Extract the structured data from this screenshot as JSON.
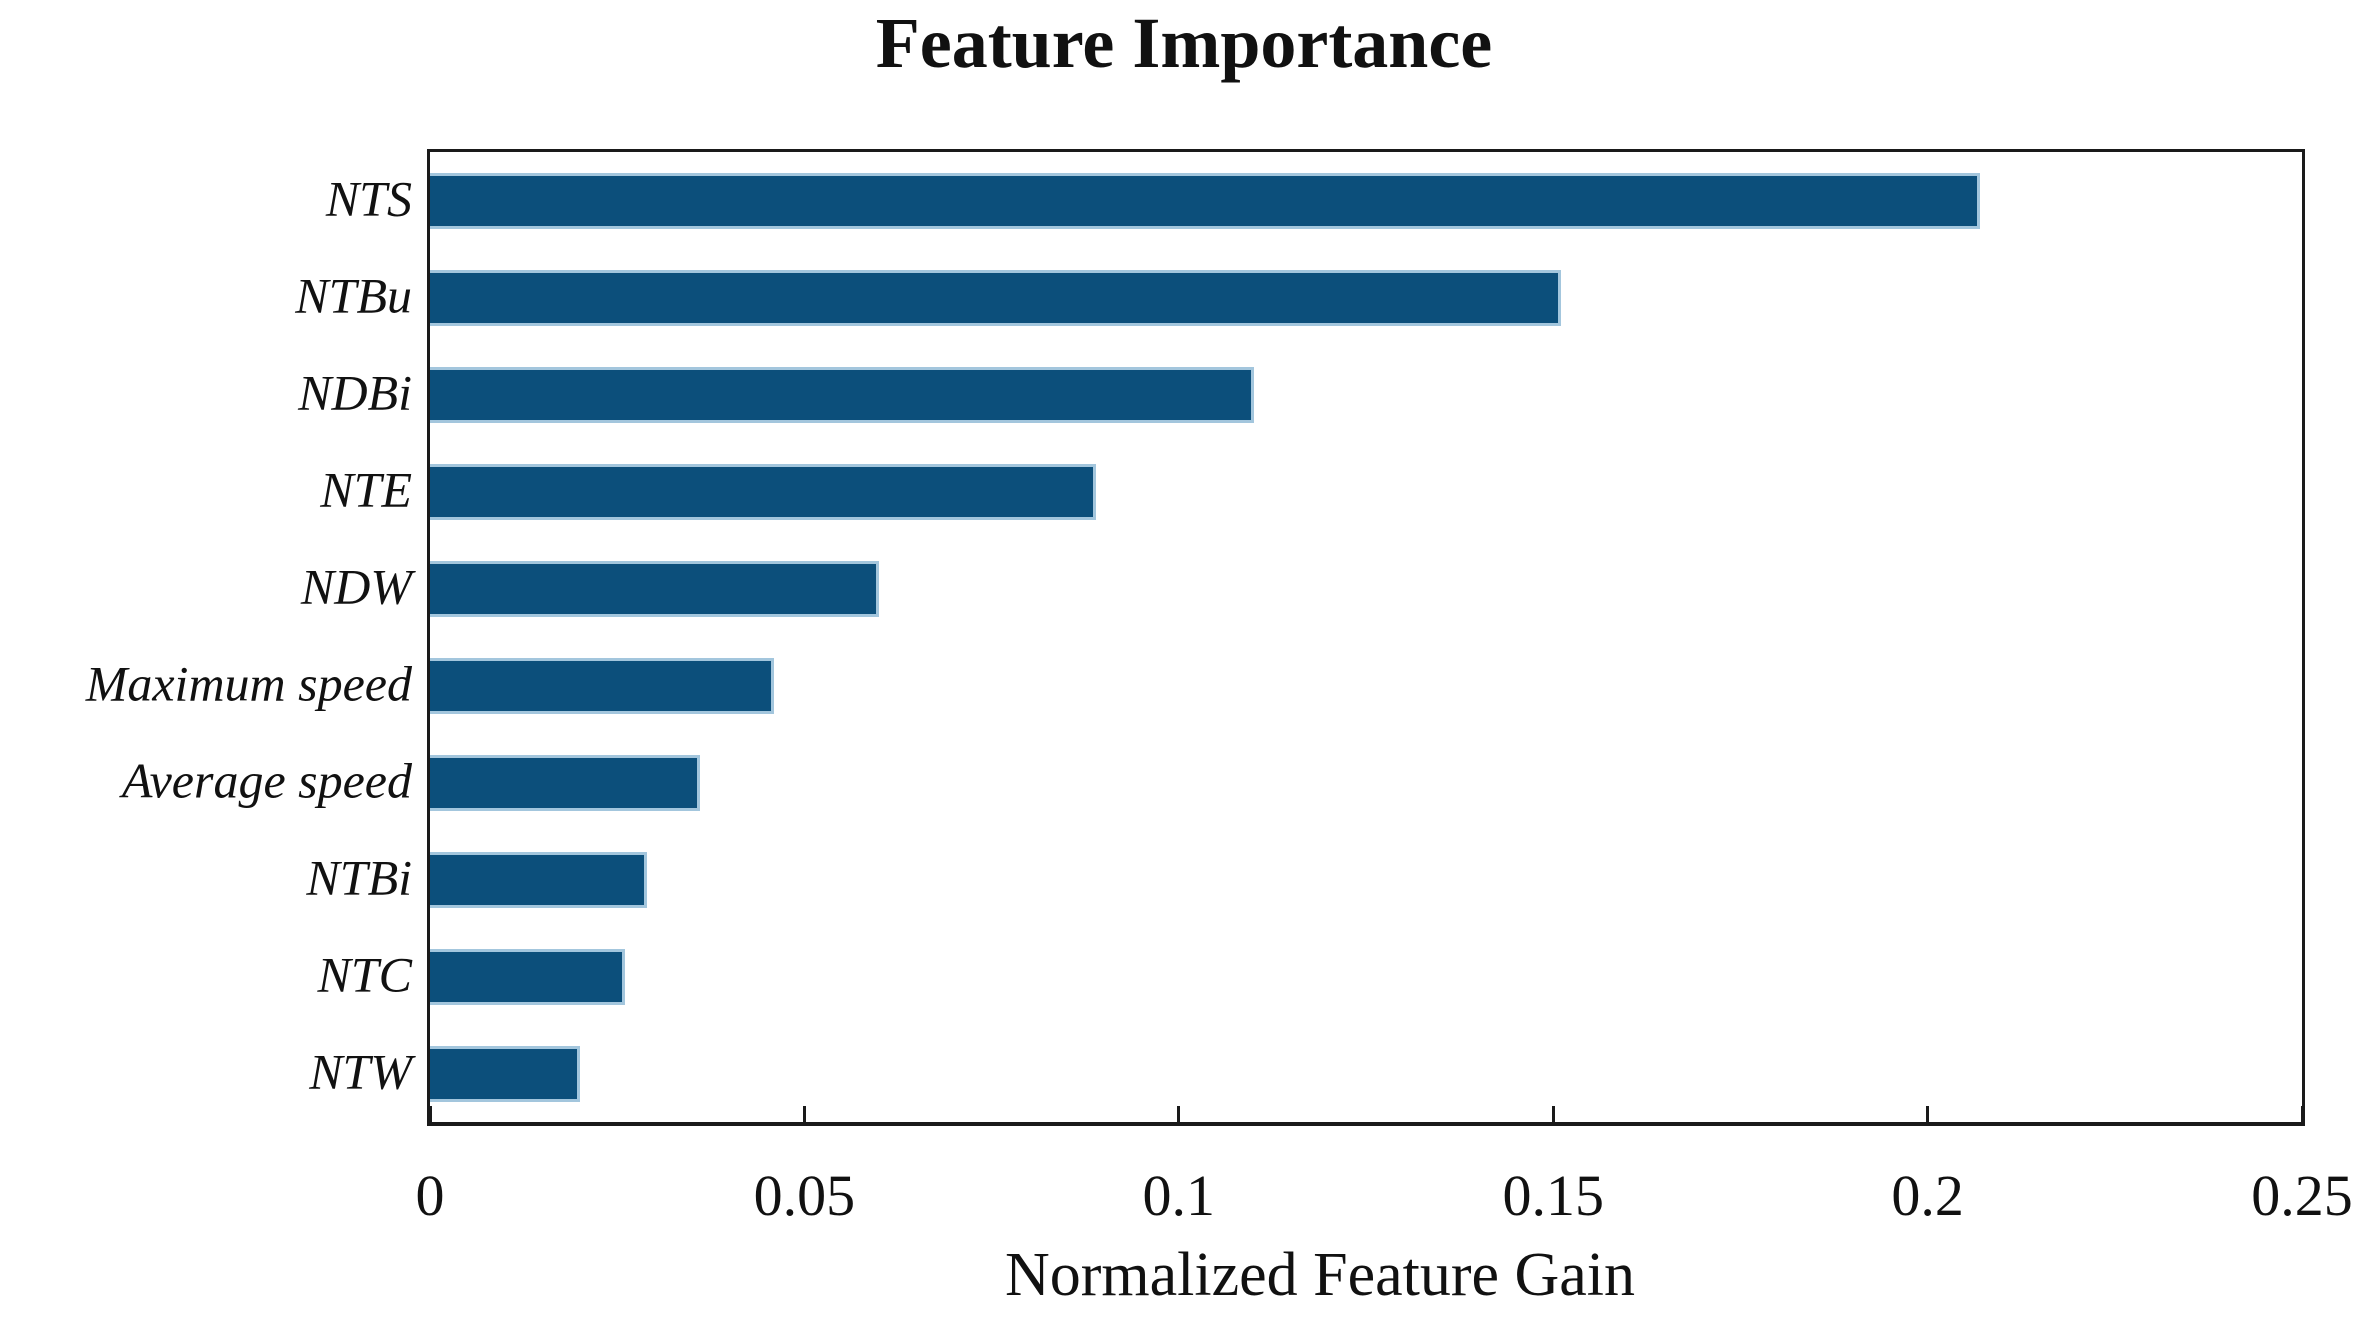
{
  "figure": {
    "title": "Feature Importance",
    "xlabel": "Normalized Feature Gain"
  },
  "chart_data": {
    "type": "bar",
    "orientation": "horizontal",
    "title": "Feature Importance",
    "xlabel": "Normalized Feature Gain",
    "ylabel": "",
    "categories": [
      "NTS",
      "NTBu",
      "NDBi",
      "NTE",
      "NDW",
      "Maximum speed",
      "Average speed",
      "NTBi",
      "NTC",
      "NTW"
    ],
    "values": [
      0.207,
      0.151,
      0.11,
      0.089,
      0.06,
      0.046,
      0.036,
      0.029,
      0.026,
      0.02
    ],
    "xlim": [
      0,
      0.25
    ],
    "xticks": [
      0,
      0.05,
      0.1,
      0.15,
      0.2,
      0.25
    ],
    "xtick_labels": [
      "0",
      "0.05",
      "0.1",
      "0.15",
      "0.2",
      "0.25"
    ],
    "bar_color": "#0C4F7B",
    "bar_edge_color": "#A3C6DD",
    "axis_color": "#1a1a1a",
    "grid": false,
    "legend": null
  }
}
